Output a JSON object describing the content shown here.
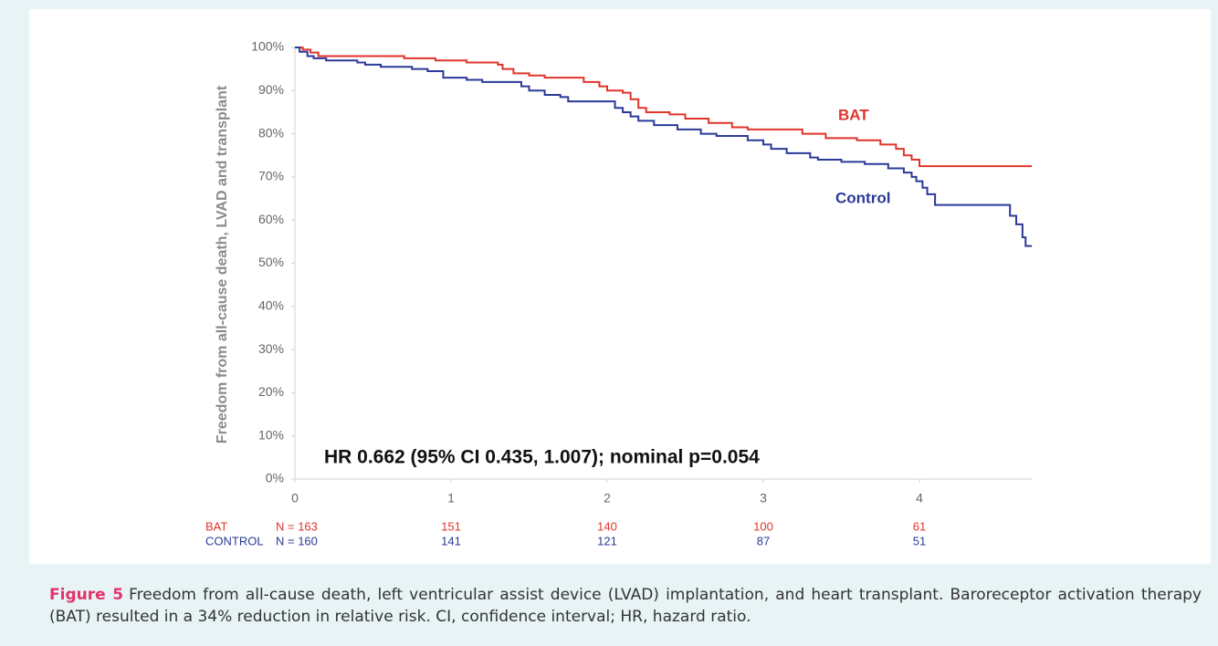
{
  "chart_data": {
    "type": "step",
    "y_label": "Freedom from all-cause death, LVAD and transplant",
    "annotation": "HR 0.662 (95% CI  0.435, 1.007); nominal p=0.054",
    "xlim": [
      0,
      4.72
    ],
    "xticks": [
      0,
      1,
      2,
      3,
      4
    ],
    "ylim": [
      0,
      100
    ],
    "yticks": [
      {
        "value": 0,
        "label": "0%"
      },
      {
        "value": 10,
        "label": "10%"
      },
      {
        "value": 20,
        "label": "20%"
      },
      {
        "value": 30,
        "label": "30%"
      },
      {
        "value": 40,
        "label": "40%"
      },
      {
        "value": 50,
        "label": "50%"
      },
      {
        "value": 60,
        "label": "60%"
      },
      {
        "value": 70,
        "label": "70%"
      },
      {
        "value": 80,
        "label": "80%"
      },
      {
        "value": 90,
        "label": "90%"
      },
      {
        "value": 100,
        "label": "100%"
      }
    ],
    "series": [
      {
        "name": "BAT",
        "color": "#e0342b",
        "x": [
          0,
          0.05,
          0.1,
          0.15,
          0.7,
          0.9,
          1.1,
          1.3,
          1.33,
          1.4,
          1.5,
          1.6,
          1.85,
          1.95,
          2.0,
          2.1,
          2.15,
          2.2,
          2.25,
          2.4,
          2.5,
          2.65,
          2.8,
          2.9,
          3.25,
          3.4,
          3.6,
          3.75,
          3.85,
          3.9,
          3.95,
          4.0,
          4.72
        ],
        "values": [
          100,
          99.5,
          98.8,
          98,
          97.5,
          97,
          96.5,
          96,
          95,
          94,
          93.5,
          93,
          92,
          91,
          90,
          89.5,
          88,
          86,
          85,
          84.5,
          83.5,
          82.5,
          81.5,
          81,
          80,
          79,
          78.5,
          77.5,
          76.5,
          75,
          74,
          72.5,
          72.5
        ]
      },
      {
        "name": "Control",
        "color": "#2b3a98",
        "x": [
          0,
          0.03,
          0.08,
          0.12,
          0.2,
          0.4,
          0.45,
          0.55,
          0.75,
          0.85,
          0.95,
          1.1,
          1.2,
          1.45,
          1.5,
          1.6,
          1.7,
          1.75,
          2.05,
          2.1,
          2.15,
          2.2,
          2.3,
          2.45,
          2.6,
          2.7,
          2.9,
          3.0,
          3.05,
          3.15,
          3.3,
          3.35,
          3.5,
          3.65,
          3.8,
          3.9,
          3.95,
          3.98,
          4.02,
          4.05,
          4.1,
          4.55,
          4.58,
          4.62,
          4.66,
          4.68,
          4.72
        ],
        "values": [
          100,
          99,
          98,
          97.5,
          97,
          96.5,
          96,
          95.5,
          95,
          94.5,
          93,
          92.5,
          92,
          91,
          90,
          89,
          88.5,
          87.5,
          86,
          85,
          84,
          83,
          82,
          81,
          80,
          79.5,
          78.5,
          77.5,
          76.5,
          75.5,
          74.5,
          74,
          73.5,
          73,
          72,
          71,
          70,
          69,
          67.5,
          66,
          63.5,
          63.5,
          61,
          59,
          56,
          54,
          54
        ]
      }
    ],
    "risk_table": {
      "rows": [
        {
          "label": "BAT",
          "cells": [
            "N = 163",
            "151",
            "140",
            "100",
            "61"
          ]
        },
        {
          "label": "CONTROL",
          "cells": [
            "N = 160",
            "141",
            "121",
            "87",
            "51"
          ]
        }
      ]
    }
  },
  "caption": {
    "label": "Figure 5",
    "text": "Freedom from all-cause death, left ventricular assist device (LVAD) implantation, and heart transplant. Baroreceptor activation therapy (BAT) resulted in a 34% reduction in relative risk. CI, confidence interval; HR, hazard ratio."
  }
}
